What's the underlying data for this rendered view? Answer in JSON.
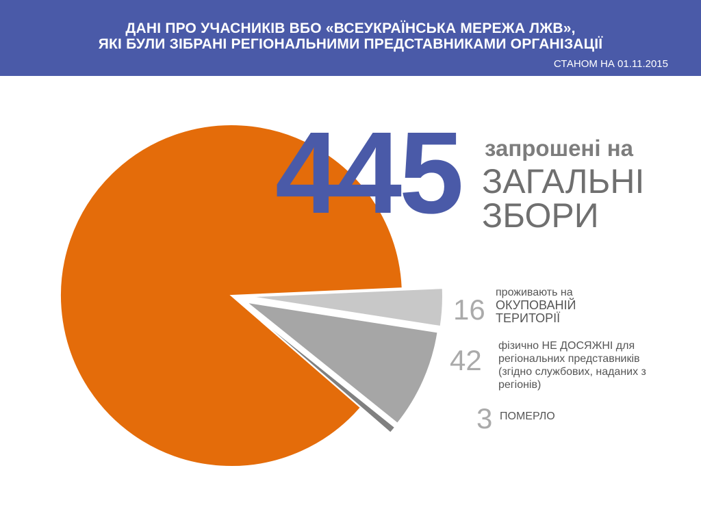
{
  "header": {
    "title_line1": "ДАНІ ПРО  УЧАСНИКІВ ВБО «ВСЕУКРАЇНСЬКА МЕРЕЖА ЛЖВ»,",
    "title_line2": "ЯКІ БУЛИ ЗІБРАНІ РЕГІОНАЛЬНИМИ ПРЕДСТАВНИКАМИ ОРГАНІЗАЦІЇ",
    "date": "СТАНОМ НА 01.11.2015"
  },
  "main": {
    "number": "445",
    "label_line1": "запрошені на",
    "label_line2": "ЗАГАЛЬНІ",
    "label_line3": "ЗБОРИ"
  },
  "categories": [
    {
      "number": "16",
      "line1": "проживають на",
      "line2": "ОКУПОВАНІЙ",
      "line3": "ТЕРИТОРІЇ"
    },
    {
      "number": "42",
      "text": "фізично НЕ ДОСЯЖНІ для регіональних представників (згідно службових, наданих з регіонів)"
    },
    {
      "number": "3",
      "text": "ПОМЕРЛО"
    }
  ],
  "colors": {
    "header": "#4a5aa8",
    "main_slice": "#e46c0a",
    "slice_16": "#c8c8c8",
    "slice_42": "#a6a6a6",
    "slice_3": "#808080",
    "big_number": "#4a5aa8"
  },
  "chart_data": {
    "type": "pie",
    "categories": [
      "запрошені на ЗАГАЛЬНІ ЗБОРИ",
      "проживають на ОКУПОВАНІЙ ТЕРИТОРІЇ",
      "фізично НЕ ДОСЯЖНІ для регіональних представників",
      "ПОМЕРЛО"
    ],
    "values": [
      445,
      16,
      42,
      3
    ],
    "exploded": [
      false,
      true,
      true,
      true
    ]
  }
}
